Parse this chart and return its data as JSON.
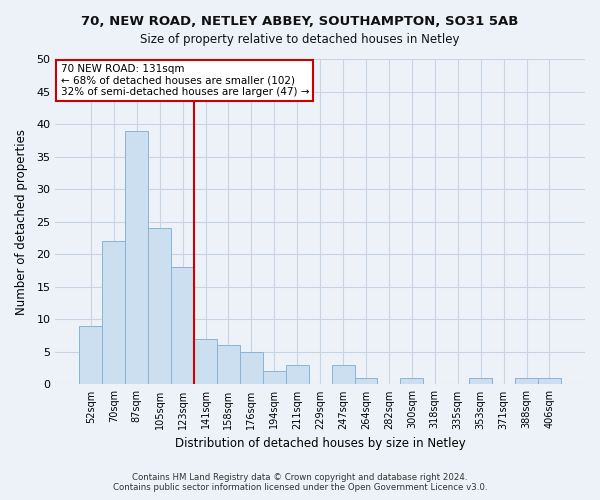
{
  "title": "70, NEW ROAD, NETLEY ABBEY, SOUTHAMPTON, SO31 5AB",
  "subtitle": "Size of property relative to detached houses in Netley",
  "xlabel": "Distribution of detached houses by size in Netley",
  "ylabel": "Number of detached properties",
  "bar_labels": [
    "52sqm",
    "70sqm",
    "87sqm",
    "105sqm",
    "123sqm",
    "141sqm",
    "158sqm",
    "176sqm",
    "194sqm",
    "211sqm",
    "229sqm",
    "247sqm",
    "264sqm",
    "282sqm",
    "300sqm",
    "318sqm",
    "335sqm",
    "353sqm",
    "371sqm",
    "388sqm",
    "406sqm"
  ],
  "bar_values": [
    9,
    22,
    39,
    24,
    18,
    7,
    6,
    5,
    2,
    3,
    0,
    3,
    1,
    0,
    1,
    0,
    0,
    1,
    0,
    1,
    1
  ],
  "bar_color": "#ccdff0",
  "bar_edge_color": "#8ab4d4",
  "vline_color": "#cc0000",
  "annotation_title": "70 NEW ROAD: 131sqm",
  "annotation_line1": "← 68% of detached houses are smaller (102)",
  "annotation_line2": "32% of semi-detached houses are larger (47) →",
  "annotation_box_color": "#ffffff",
  "annotation_box_edge": "#cc0000",
  "ylim": [
    0,
    50
  ],
  "yticks": [
    0,
    5,
    10,
    15,
    20,
    25,
    30,
    35,
    40,
    45,
    50
  ],
  "grid_color": "#c8d4e4",
  "footer1": "Contains HM Land Registry data © Crown copyright and database right 2024.",
  "footer2": "Contains public sector information licensed under the Open Government Licence v3.0.",
  "bg_color": "#edf2f9",
  "plot_bg_color": "#edf2f9"
}
